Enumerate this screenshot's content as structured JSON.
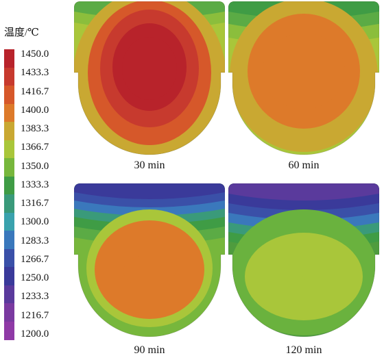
{
  "legend": {
    "title": "温度/℃",
    "labels": [
      "1450.0",
      "1433.3",
      "1416.7",
      "1400.0",
      "1383.3",
      "1366.7",
      "1350.0",
      "1333.3",
      "1316.7",
      "1300.0",
      "1283.3",
      "1266.7",
      "1250.0",
      "1233.3",
      "1216.7",
      "1200.0"
    ],
    "colors": [
      "#b8232b",
      "#c73a2e",
      "#d6582a",
      "#dd7a2a",
      "#c9a832",
      "#a9c63a",
      "#77b73c",
      "#3f9c45",
      "#3a9a7a",
      "#3aa2ad",
      "#3a78bc",
      "#3a50a8",
      "#3a3a9a",
      "#5a3a9c",
      "#7a3aa0",
      "#8f3aa6"
    ]
  },
  "panels": [
    {
      "caption": "30 min",
      "bands": [
        "#5bab45",
        "#8bbe3c",
        "#a9c63a",
        "#c9a832",
        "#d6582a",
        "#c73a2e",
        "#b8232b"
      ]
    },
    {
      "caption": "60 min",
      "bands": [
        "#3f9c45",
        "#5bab45",
        "#8bbe3c",
        "#a9c63a",
        "#c9a832",
        "#dd7a2a"
      ]
    },
    {
      "caption": "90 min",
      "bands": [
        "#3a3a9a",
        "#3a50a8",
        "#3a78bc",
        "#3a9a7a",
        "#3f9c45",
        "#5bab45",
        "#77b73c",
        "#a9c63a",
        "#dd7a2a"
      ]
    },
    {
      "caption": "120 min",
      "bands": [
        "#5a3a9c",
        "#3a3a9a",
        "#3a50a8",
        "#3a78bc",
        "#3a9a7a",
        "#3f9c45",
        "#4f9c3e",
        "#6ab23e",
        "#a9c63a"
      ]
    }
  ]
}
